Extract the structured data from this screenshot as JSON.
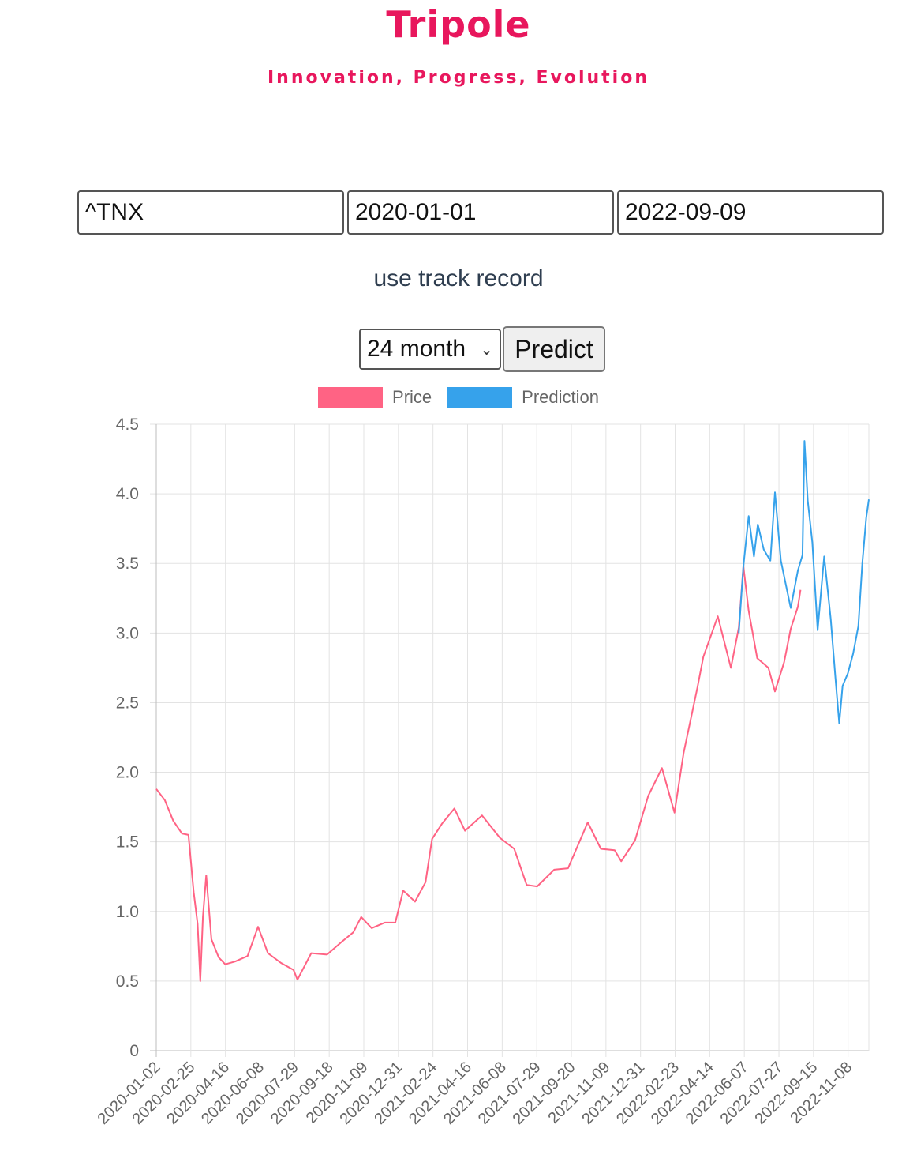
{
  "brand": {
    "title": "Tripole",
    "tagline": "Innovation, Progress, Evolution"
  },
  "form": {
    "ticker": "^TNX",
    "start_date": "2020-01-01",
    "end_date": "2022-09-09",
    "track_record_label": "use track record",
    "period_selected": "24 month",
    "predict_label": "Predict"
  },
  "colors": {
    "brand": "#e8175d",
    "price": "#ff6384",
    "prediction": "#36a2eb"
  },
  "chart_data": {
    "type": "line",
    "legend_position": "top",
    "grid": true,
    "ylim": [
      0,
      4.5
    ],
    "y_ticks": [
      "0",
      "0.5",
      "1.0",
      "1.5",
      "2.0",
      "2.5",
      "3.0",
      "3.5",
      "4.0",
      "4.5"
    ],
    "x_ticks": [
      "2020-01-02",
      "2020-02-25",
      "2020-04-16",
      "2020-06-08",
      "2020-07-29",
      "2020-09-18",
      "2020-11-09",
      "2020-12-31",
      "2021-02-24",
      "2021-04-16",
      "2021-06-08",
      "2021-07-29",
      "2021-09-20",
      "2021-11-09",
      "2021-12-31",
      "2022-02-23",
      "2022-04-14",
      "2022-06-07",
      "2022-07-27",
      "2022-09-15",
      "2022-11-08"
    ],
    "series": [
      {
        "name": "Price",
        "points": [
          [
            "2020-01-02",
            1.88
          ],
          [
            "2020-01-15",
            1.8
          ],
          [
            "2020-01-28",
            1.65
          ],
          [
            "2020-02-10",
            1.56
          ],
          [
            "2020-02-20",
            1.55
          ],
          [
            "2020-02-28",
            1.14
          ],
          [
            "2020-03-05",
            0.91
          ],
          [
            "2020-03-09",
            0.5
          ],
          [
            "2020-03-13",
            0.96
          ],
          [
            "2020-03-18",
            1.26
          ],
          [
            "2020-03-26",
            0.8
          ],
          [
            "2020-04-06",
            0.67
          ],
          [
            "2020-04-16",
            0.62
          ],
          [
            "2020-05-01",
            0.64
          ],
          [
            "2020-05-20",
            0.68
          ],
          [
            "2020-06-05",
            0.89
          ],
          [
            "2020-06-20",
            0.7
          ],
          [
            "2020-07-10",
            0.63
          ],
          [
            "2020-07-29",
            0.58
          ],
          [
            "2020-08-04",
            0.51
          ],
          [
            "2020-08-25",
            0.7
          ],
          [
            "2020-09-18",
            0.69
          ],
          [
            "2020-10-10",
            0.78
          ],
          [
            "2020-10-28",
            0.85
          ],
          [
            "2020-11-09",
            0.96
          ],
          [
            "2020-11-25",
            0.88
          ],
          [
            "2020-12-15",
            0.92
          ],
          [
            "2020-12-31",
            0.92
          ],
          [
            "2021-01-12",
            1.15
          ],
          [
            "2021-01-30",
            1.07
          ],
          [
            "2021-02-15",
            1.21
          ],
          [
            "2021-02-25",
            1.52
          ],
          [
            "2021-03-12",
            1.63
          ],
          [
            "2021-03-31",
            1.74
          ],
          [
            "2021-04-16",
            1.58
          ],
          [
            "2021-05-12",
            1.69
          ],
          [
            "2021-06-08",
            1.53
          ],
          [
            "2021-06-30",
            1.45
          ],
          [
            "2021-07-19",
            1.19
          ],
          [
            "2021-08-04",
            1.18
          ],
          [
            "2021-08-30",
            1.3
          ],
          [
            "2021-09-20",
            1.31
          ],
          [
            "2021-10-20",
            1.64
          ],
          [
            "2021-11-09",
            1.45
          ],
          [
            "2021-11-30",
            1.44
          ],
          [
            "2021-12-10",
            1.36
          ],
          [
            "2021-12-31",
            1.51
          ],
          [
            "2022-01-20",
            1.83
          ],
          [
            "2022-02-10",
            2.03
          ],
          [
            "2022-03-01",
            1.71
          ],
          [
            "2022-03-15",
            2.14
          ],
          [
            "2022-04-05",
            2.61
          ],
          [
            "2022-04-14",
            2.83
          ],
          [
            "2022-05-06",
            3.12
          ],
          [
            "2022-05-26",
            2.75
          ],
          [
            "2022-06-07",
            3.04
          ],
          [
            "2022-06-14",
            3.48
          ],
          [
            "2022-06-22",
            3.16
          ],
          [
            "2022-07-05",
            2.82
          ],
          [
            "2022-07-22",
            2.75
          ],
          [
            "2022-08-01",
            2.58
          ],
          [
            "2022-08-15",
            2.79
          ],
          [
            "2022-08-25",
            3.03
          ],
          [
            "2022-09-05",
            3.19
          ],
          [
            "2022-09-09",
            3.31
          ]
        ]
      },
      {
        "name": "Prediction",
        "points": [
          [
            "2022-06-07",
            3.0
          ],
          [
            "2022-06-14",
            3.48
          ],
          [
            "2022-06-22",
            3.84
          ],
          [
            "2022-06-30",
            3.55
          ],
          [
            "2022-07-06",
            3.78
          ],
          [
            "2022-07-15",
            3.6
          ],
          [
            "2022-07-25",
            3.52
          ],
          [
            "2022-08-01",
            4.01
          ],
          [
            "2022-08-10",
            3.52
          ],
          [
            "2022-08-18",
            3.34
          ],
          [
            "2022-08-25",
            3.18
          ],
          [
            "2022-09-05",
            3.45
          ],
          [
            "2022-09-12",
            3.56
          ],
          [
            "2022-09-15",
            4.38
          ],
          [
            "2022-09-20",
            3.95
          ],
          [
            "2022-09-27",
            3.65
          ],
          [
            "2022-10-05",
            3.02
          ],
          [
            "2022-10-15",
            3.55
          ],
          [
            "2022-10-25",
            3.1
          ],
          [
            "2022-11-01",
            2.68
          ],
          [
            "2022-11-07",
            2.35
          ],
          [
            "2022-11-12",
            2.62
          ],
          [
            "2022-11-20",
            2.71
          ],
          [
            "2022-11-28",
            2.85
          ],
          [
            "2022-12-06",
            3.05
          ],
          [
            "2022-12-12",
            3.5
          ],
          [
            "2022-12-18",
            3.83
          ],
          [
            "2022-12-22",
            3.96
          ]
        ]
      }
    ]
  }
}
